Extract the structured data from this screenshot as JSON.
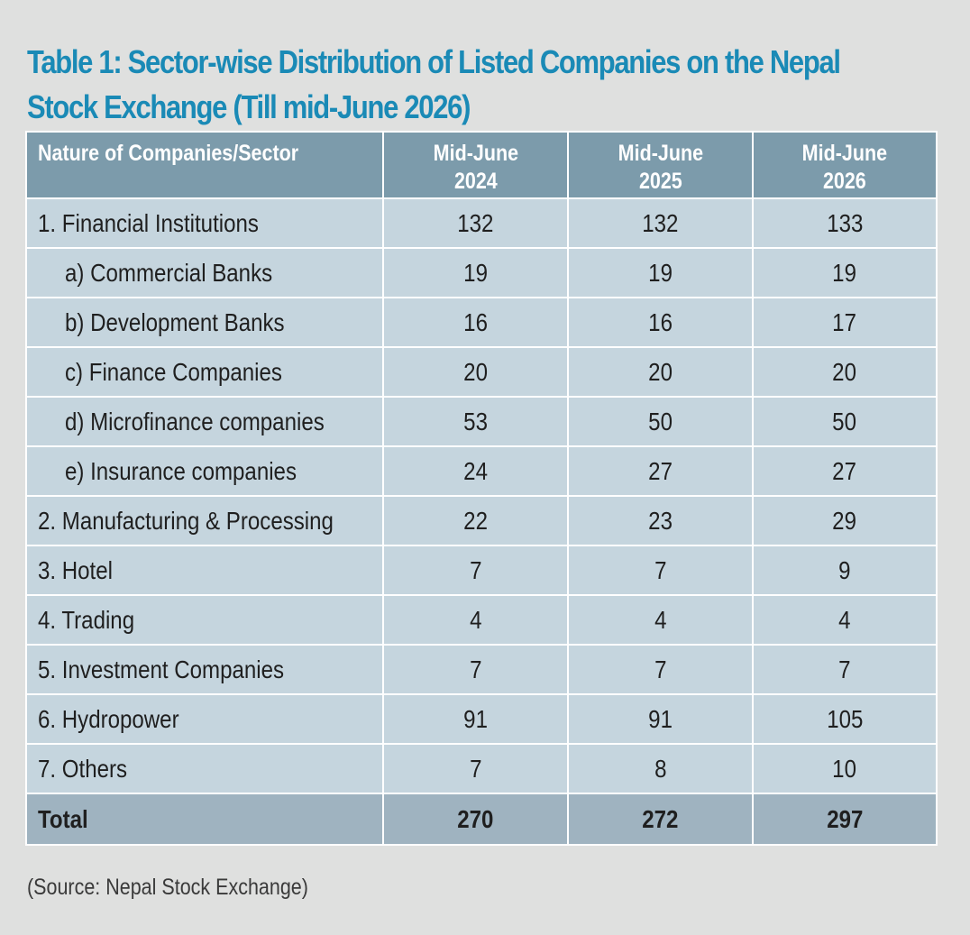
{
  "title": {
    "line1": "Table 1: Sector-wise Distribution of Listed Companies on the Nepal",
    "line2": "Stock Exchange (Till mid-June 2026)"
  },
  "table": {
    "header": {
      "sector": "Nature of Companies/Sector",
      "years": [
        {
          "line1": "Mid-June",
          "line2": "2024"
        },
        {
          "line1": "Mid-June",
          "line2": "2025"
        },
        {
          "line1": "Mid-June",
          "line2": "2026"
        }
      ]
    },
    "rows": [
      {
        "label": "1. Financial Institutions",
        "values": [
          "132",
          "132",
          "133"
        ]
      },
      {
        "label": "a) Commercial Banks",
        "values": [
          "19",
          "19",
          "19"
        ]
      },
      {
        "label": "b) Development Banks",
        "values": [
          "16",
          "16",
          "17"
        ]
      },
      {
        "label": "c) Finance Companies",
        "values": [
          "20",
          "20",
          "20"
        ]
      },
      {
        "label": "d) Microfinance companies",
        "values": [
          "53",
          "50",
          "50"
        ]
      },
      {
        "label": "e) Insurance companies",
        "values": [
          "24",
          "27",
          "27"
        ]
      },
      {
        "label": "2. Manufacturing & Processing",
        "values": [
          "22",
          "23",
          "29"
        ]
      },
      {
        "label": "3. Hotel",
        "values": [
          "7",
          "7",
          "9"
        ]
      },
      {
        "label": "4. Trading",
        "values": [
          "4",
          "4",
          "4"
        ]
      },
      {
        "label": "5. Investment Companies",
        "values": [
          "7",
          "7",
          "7"
        ]
      },
      {
        "label": "6. Hydropower",
        "values": [
          "91",
          "91",
          "105"
        ]
      },
      {
        "label": "7. Others",
        "values": [
          "7",
          "8",
          "10"
        ]
      }
    ],
    "total": {
      "label": "Total",
      "values": [
        "270",
        "272",
        "297"
      ]
    }
  },
  "source": "(Source: Nepal Stock Exchange)"
}
